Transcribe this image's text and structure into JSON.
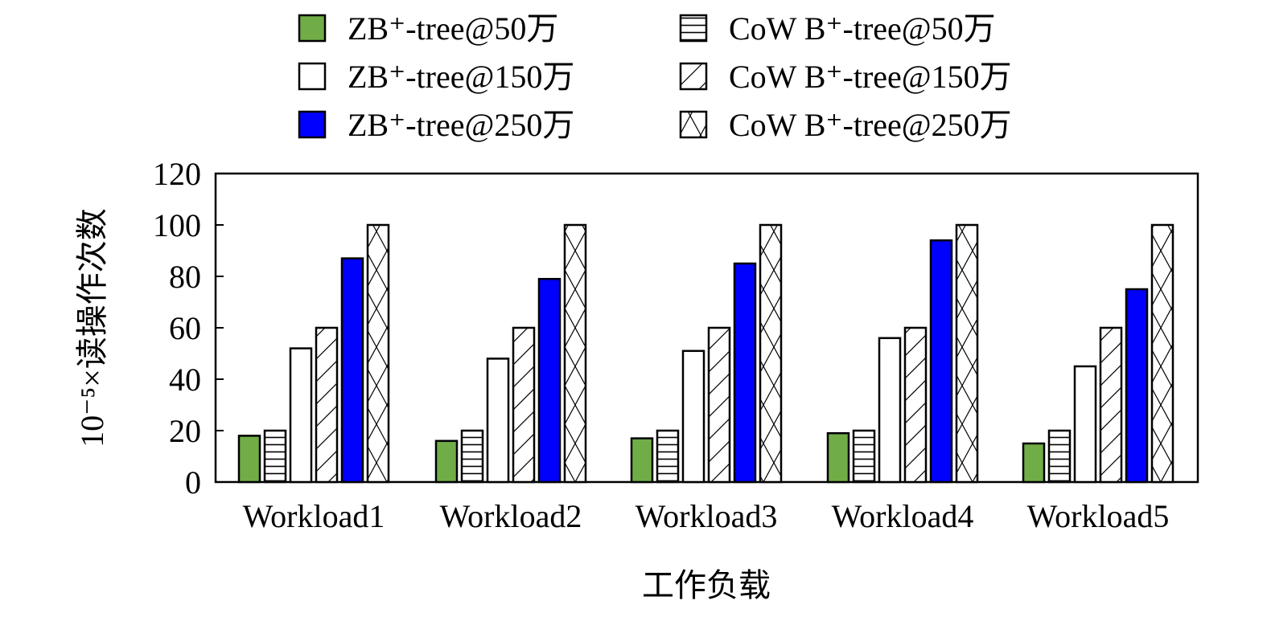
{
  "chart_data": {
    "type": "bar",
    "xlabel": "工作负载",
    "ylabel": "10⁻⁵×读操作次数",
    "ylim": [
      0,
      120
    ],
    "yticks": [
      "0",
      "20",
      "40",
      "60",
      "80",
      "100",
      "120"
    ],
    "categories": [
      "Workload1",
      "Workload2",
      "Workload3",
      "Workload4",
      "Workload5"
    ],
    "legend_position": "top",
    "series": [
      {
        "name": "ZB⁺-tree@50万",
        "fill": "#70ad47",
        "pattern": "solid",
        "values": [
          18,
          16,
          17,
          19,
          15
        ]
      },
      {
        "name": "CoW B⁺-tree@50万",
        "fill": "#ffffff",
        "pattern": "horizontal",
        "values": [
          20,
          20,
          20,
          20,
          20
        ]
      },
      {
        "name": "ZB⁺-tree@150万",
        "fill": "#ffffff",
        "pattern": "none",
        "values": [
          52,
          48,
          51,
          56,
          45
        ]
      },
      {
        "name": "CoW B⁺-tree@150万",
        "fill": "#ffffff",
        "pattern": "diagonal",
        "values": [
          60,
          60,
          60,
          60,
          60
        ]
      },
      {
        "name": "ZB⁺-tree@250万",
        "fill": "#0000ff",
        "pattern": "solid",
        "values": [
          87,
          79,
          85,
          94,
          75
        ]
      },
      {
        "name": "CoW B⁺-tree@250万",
        "fill": "#ffffff",
        "pattern": "cross",
        "values": [
          100,
          100,
          100,
          100,
          100
        ]
      }
    ],
    "legend_order": [
      0,
      1,
      2,
      3,
      4,
      5
    ]
  }
}
